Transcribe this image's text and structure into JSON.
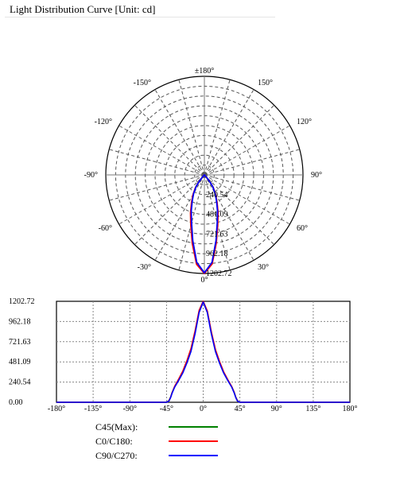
{
  "title": "Light Distribution Curve [Unit: cd]",
  "colors": {
    "c45": "#008000",
    "c0": "#ff0000",
    "c90": "#0000ff",
    "grid": "#555555"
  },
  "chart_data": [
    {
      "type": "polar",
      "angle_labels": [
        {
          "deg": 180,
          "text": "±180°"
        },
        {
          "deg": 150,
          "text": "150°"
        },
        {
          "deg": 120,
          "text": "120°"
        },
        {
          "deg": 90,
          "text": "90°"
        },
        {
          "deg": 60,
          "text": "60°"
        },
        {
          "deg": 30,
          "text": "30°"
        },
        {
          "deg": 0,
          "text": "0°"
        },
        {
          "deg": -30,
          "text": "-30°"
        },
        {
          "deg": -60,
          "text": "-60°"
        },
        {
          "deg": -90,
          "text": "-90°"
        },
        {
          "deg": -120,
          "text": "-120°"
        },
        {
          "deg": -150,
          "text": "-150°"
        }
      ],
      "radial_ticks": [
        240.54,
        481.09,
        721.63,
        962.18,
        1202.72
      ],
      "radial_tick_labels": [
        "240.54",
        "481.09",
        "721.63",
        "962.18",
        "1202.72"
      ],
      "rmax": 1202.72,
      "grid": true
    },
    {
      "type": "line",
      "x_ticks": [
        -180,
        -135,
        -90,
        -45,
        0,
        45,
        90,
        135,
        180
      ],
      "x_tick_labels": [
        "-180°",
        "-135°",
        "-90°",
        "-45°",
        "0°",
        "45°",
        "90°",
        "135°",
        "180°"
      ],
      "y_ticks": [
        0,
        240.54,
        481.09,
        721.63,
        962.18,
        1202.72
      ],
      "y_tick_labels": [
        "0.00",
        "240.54",
        "481.09",
        "721.63",
        "962.18",
        "1202.72"
      ],
      "xlim": [
        -180,
        180
      ],
      "ylim": [
        0,
        1202.72
      ],
      "grid": true,
      "legend_position": "below",
      "x": [
        -180,
        -90,
        -45,
        -42,
        -40,
        -38,
        -35,
        -30,
        -25,
        -20,
        -15,
        -10,
        -5,
        0,
        5,
        10,
        15,
        20,
        25,
        30,
        35,
        38,
        40,
        42,
        45,
        90,
        180
      ],
      "series": [
        {
          "name": "C45(Max):",
          "values": [
            0,
            0,
            0,
            20,
            60,
            120,
            185,
            270,
            360,
            480,
            620,
            830,
            1080,
            1202.72,
            1080,
            830,
            620,
            480,
            360,
            270,
            185,
            120,
            60,
            20,
            0,
            0,
            0
          ]
        },
        {
          "name": "C0/C180:",
          "values": [
            0,
            0,
            0,
            18,
            58,
            118,
            190,
            278,
            372,
            495,
            640,
            850,
            1095,
            1202.72,
            1090,
            840,
            630,
            488,
            365,
            272,
            188,
            118,
            58,
            18,
            0,
            0,
            0
          ]
        },
        {
          "name": "C90/C270:",
          "values": [
            0,
            0,
            0,
            15,
            55,
            112,
            180,
            262,
            350,
            468,
            605,
            815,
            1070,
            1195,
            1070,
            815,
            605,
            468,
            350,
            262,
            180,
            112,
            55,
            15,
            0,
            0,
            0
          ]
        }
      ]
    }
  ]
}
